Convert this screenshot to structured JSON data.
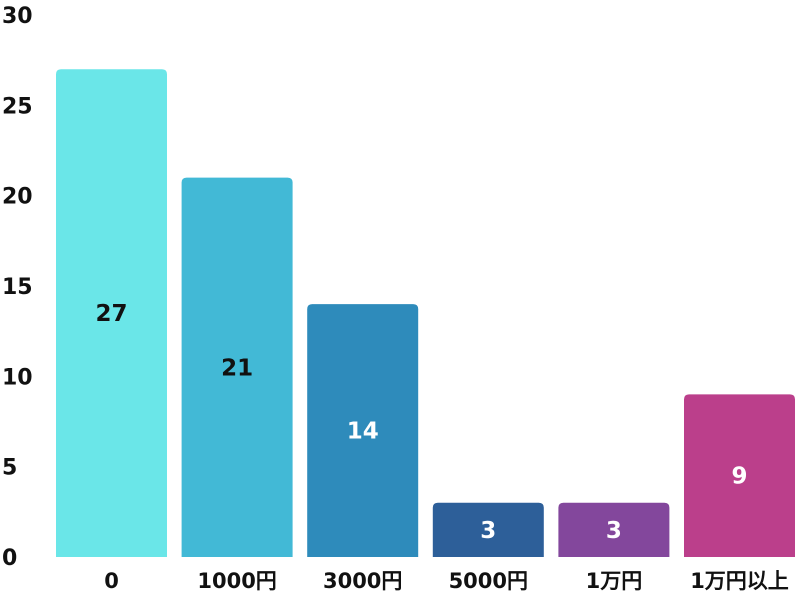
{
  "chart_data": {
    "type": "bar",
    "title": "",
    "xlabel": "",
    "ylabel": "",
    "categories": [
      "0",
      "1000円",
      "3000円",
      "5000円",
      "1万円",
      "1万円以上"
    ],
    "values": [
      27,
      21,
      14,
      3,
      3,
      9
    ],
    "data_labels": [
      "27",
      "21",
      "14",
      "3",
      "3",
      "9"
    ],
    "colors": [
      "#6ae6e8",
      "#42b9d6",
      "#2e8bbb",
      "#2d5f99",
      "#83479c",
      "#bb3f8b"
    ],
    "label_colors": [
      "#111111",
      "#111111",
      "#ffffff",
      "#ffffff",
      "#ffffff",
      "#ffffff"
    ],
    "ylim": [
      0,
      30
    ],
    "yticks": [
      0,
      5,
      10,
      15,
      20,
      25,
      30
    ],
    "ytick_labels": [
      "0",
      "5",
      "10",
      "15",
      "20",
      "25",
      "30"
    ],
    "grid": false,
    "legend": "none"
  }
}
